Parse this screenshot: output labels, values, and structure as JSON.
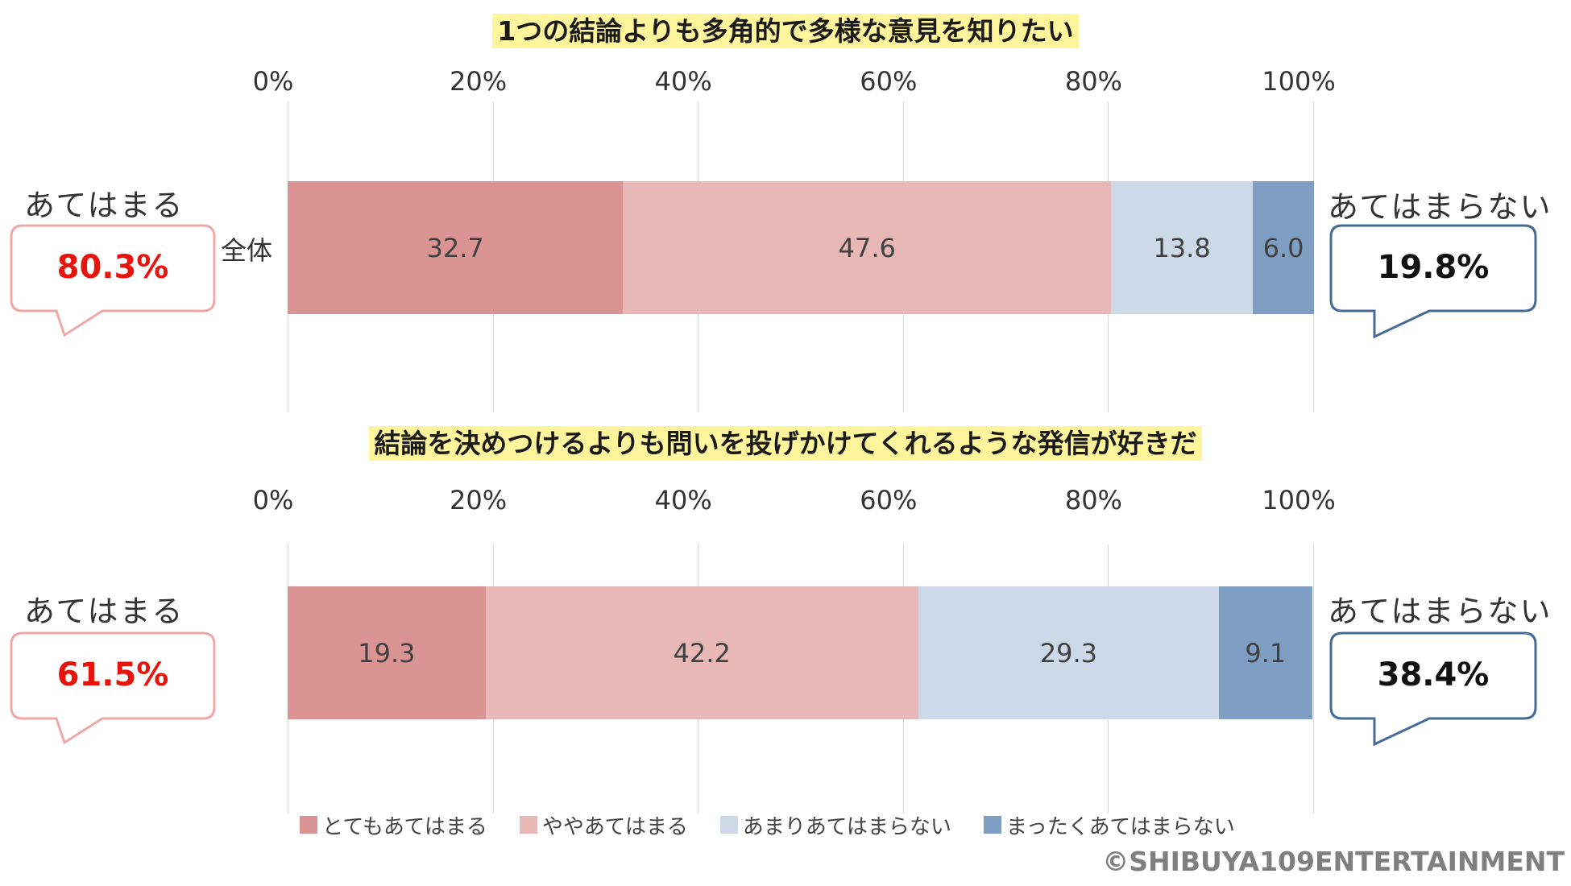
{
  "colors": {
    "very": "#d99493",
    "somewhat": "#e8b8b7",
    "not_much": "#cdd8e8",
    "not_at_all": "#7f9ec4",
    "agree_accent": "#e8140c",
    "agree_border": "#f2a7a7",
    "disagree_border": "#456b96",
    "title_highlight": "#fff59d"
  },
  "legend": [
    {
      "label": "とてもあてはまる",
      "color_key": "very"
    },
    {
      "label": "ややあてはまる",
      "color_key": "somewhat"
    },
    {
      "label": "あまりあてはまらない",
      "color_key": "not_much"
    },
    {
      "label": "まったくあてはまらない",
      "color_key": "not_at_all"
    }
  ],
  "charts": [
    {
      "agree_label": "あてはまる",
      "agree_value": "80.3%",
      "disagree_label": "あてはまらない",
      "disagree_value": "19.8%"
    },
    {
      "agree_label": "あてはまる",
      "agree_value": "61.5%",
      "disagree_label": "あてはまらない",
      "disagree_value": "38.4%"
    }
  ],
  "chart_data": [
    {
      "type": "bar",
      "orientation": "horizontal",
      "stacked": true,
      "title": "1つの結論よりも多角的で多様な意見を知りたい",
      "categories": [
        "全体"
      ],
      "xlim": [
        0,
        100
      ],
      "ticks": [
        "0%",
        "20%",
        "40%",
        "60%",
        "80%",
        "100%"
      ],
      "grid": true,
      "series": [
        {
          "name": "とてもあてはまる",
          "values": [
            32.7
          ],
          "labels": [
            "32.7"
          ]
        },
        {
          "name": "ややあてはまる",
          "values": [
            47.6
          ],
          "labels": [
            "47.6"
          ]
        },
        {
          "name": "あまりあてはまらない",
          "values": [
            13.8
          ],
          "labels": [
            "13.8"
          ]
        },
        {
          "name": "まったくあてはまらない",
          "values": [
            6.0
          ],
          "labels": [
            "6.0"
          ]
        }
      ]
    },
    {
      "type": "bar",
      "orientation": "horizontal",
      "stacked": true,
      "title": "結論を決めつけるよりも問いを投げかけてくれるような発信が好きだ",
      "categories": [
        ""
      ],
      "xlim": [
        0,
        100
      ],
      "ticks": [
        "0%",
        "20%",
        "40%",
        "60%",
        "80%",
        "100%"
      ],
      "grid": true,
      "series": [
        {
          "name": "とてもあてはまる",
          "values": [
            19.3
          ],
          "labels": [
            "19.3"
          ]
        },
        {
          "name": "ややあてはまる",
          "values": [
            42.2
          ],
          "labels": [
            "42.2"
          ]
        },
        {
          "name": "あまりあてはまらない",
          "values": [
            29.3
          ],
          "labels": [
            "29.3"
          ]
        },
        {
          "name": "まったくあてはまらない",
          "values": [
            9.1
          ],
          "labels": [
            "9.1"
          ]
        }
      ]
    }
  ],
  "legend_position": "bottom",
  "copyright": "©SHIBUYA109ENTERTAINMENT"
}
